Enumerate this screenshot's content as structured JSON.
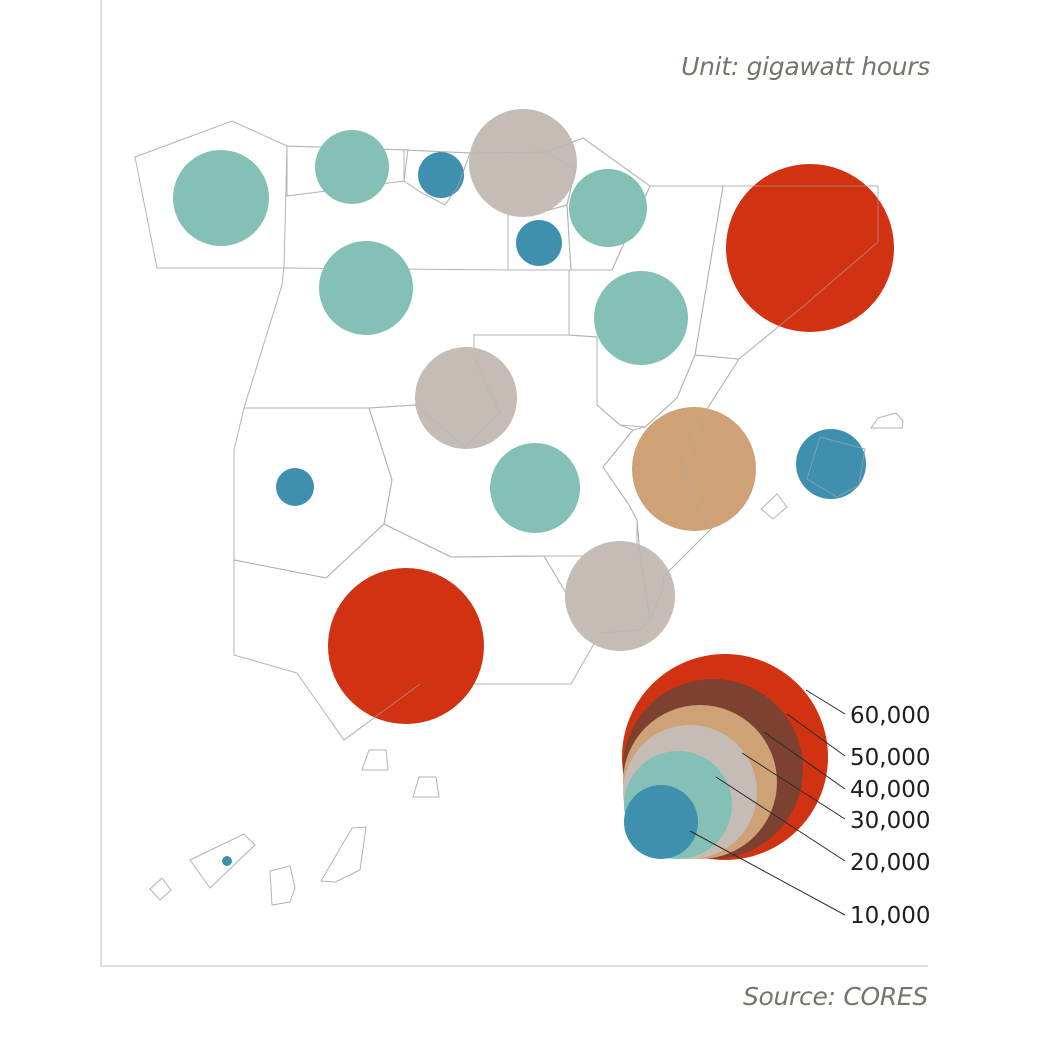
{
  "unit_label": "Unit: gigawatt hours",
  "source_label": "Source: CORES",
  "colors": {
    "c10": "#3f8fae",
    "c20": "#84c0b5",
    "c30": "#c5bcb5",
    "c40": "#cfa176",
    "c50": "#7c4130",
    "c60": "#d13211",
    "region_outline": "#b3b3b3"
  },
  "legend": {
    "items": [
      {
        "label": "60,000",
        "value": 60000,
        "color_key": "c60"
      },
      {
        "label": "50,000",
        "value": 50000,
        "color_key": "c50"
      },
      {
        "label": "40,000",
        "value": 40000,
        "color_key": "c40"
      },
      {
        "label": "30,000",
        "value": 30000,
        "color_key": "c30"
      },
      {
        "label": "20,000",
        "value": 20000,
        "color_key": "c20"
      },
      {
        "label": "10,000",
        "value": 10000,
        "color_key": "c10"
      }
    ]
  }
}
